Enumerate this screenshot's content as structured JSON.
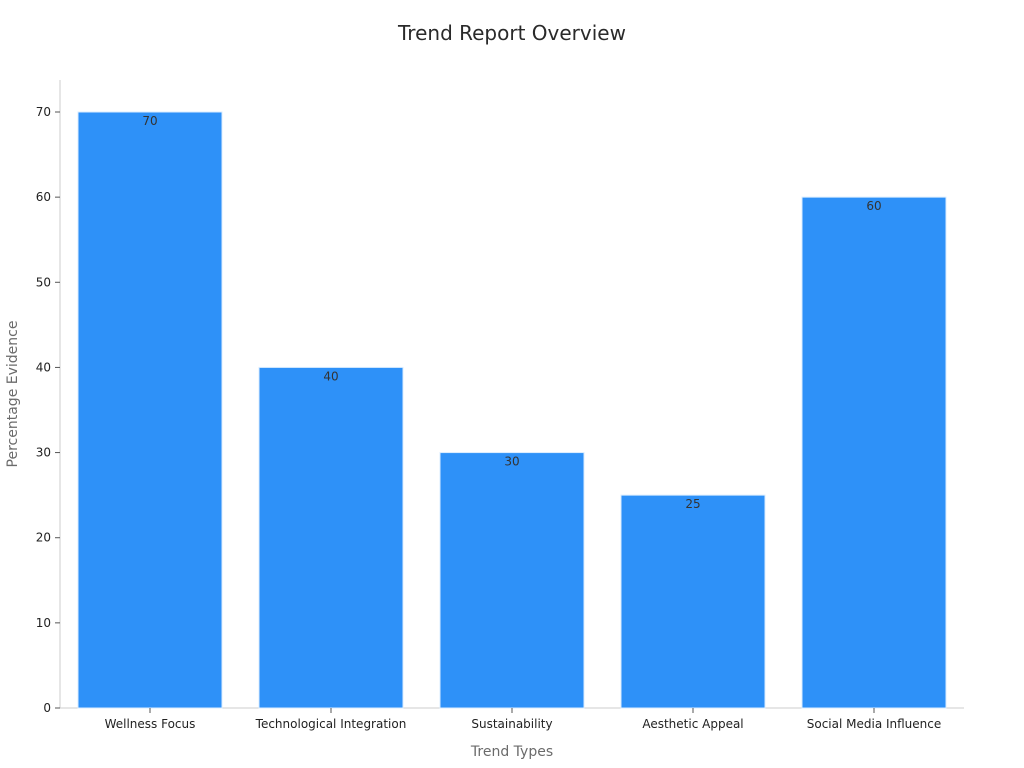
{
  "chart_data": {
    "type": "bar",
    "title": "Trend Report Overview",
    "xlabel": "Trend Types",
    "ylabel": "Percentage Evidence",
    "categories": [
      "Wellness Focus",
      "Technological Integration",
      "Sustainability",
      "Aesthetic Appeal",
      "Social Media Influence"
    ],
    "values": [
      70,
      40,
      30,
      25,
      60
    ],
    "data_labels": [
      "70",
      "40",
      "30",
      "25",
      "60"
    ],
    "yticks": [
      0,
      10,
      20,
      30,
      40,
      50,
      60,
      70
    ],
    "ylim": [
      0,
      70
    ],
    "grid": false,
    "legend": "none",
    "bar_color": "#2e91f8",
    "bar_edge_color": "#d9ecff"
  }
}
